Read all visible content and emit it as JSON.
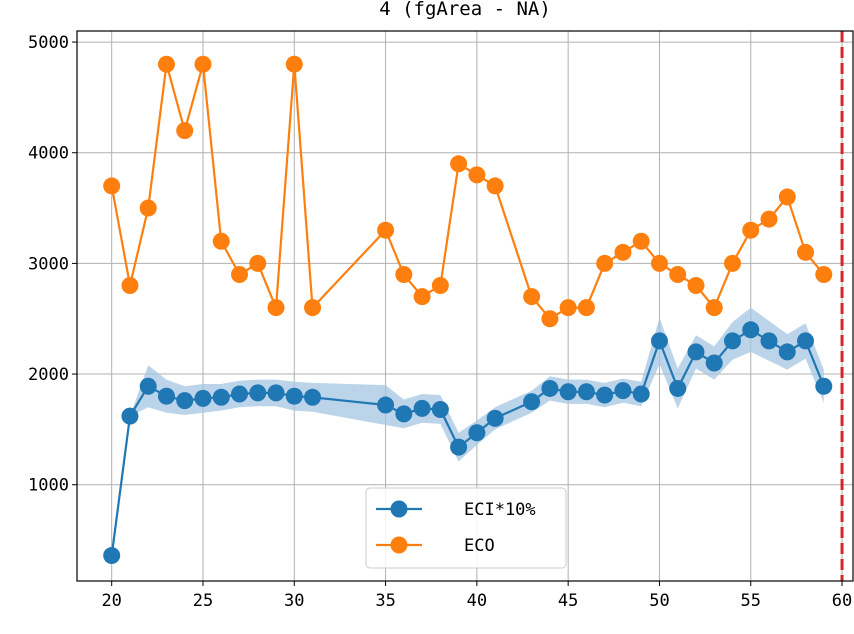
{
  "chart_data": {
    "type": "line",
    "title": "4 (fgArea - NA)",
    "xlim": [
      18.1,
      60.6
    ],
    "ylim": [
      130,
      5100
    ],
    "xticks": [
      20,
      25,
      30,
      35,
      40,
      45,
      50,
      55,
      60
    ],
    "yticks": [
      1000,
      2000,
      3000,
      4000,
      5000
    ],
    "grid": true,
    "legend_position": "bottom-center",
    "vline": {
      "x": 60,
      "color": "#d62728",
      "style": "dashed"
    },
    "series": [
      {
        "name": "ECI*10%",
        "color": "#1f77b4",
        "band_color": "#a6c6e1",
        "x": [
          20,
          21,
          22,
          23,
          24,
          25,
          26,
          27,
          28,
          29,
          30,
          31,
          35,
          36,
          37,
          38,
          39,
          40,
          41,
          43,
          44,
          45,
          46,
          47,
          48,
          49,
          50,
          51,
          52,
          53,
          54,
          55,
          56,
          57,
          58,
          59
        ],
        "y": [
          360,
          1620,
          1890,
          1800,
          1760,
          1780,
          1790,
          1820,
          1830,
          1830,
          1800,
          1790,
          1720,
          1640,
          1690,
          1680,
          1340,
          1470,
          1600,
          1750,
          1870,
          1840,
          1840,
          1810,
          1850,
          1820,
          2300,
          1870,
          2200,
          2100,
          2300,
          2400,
          2300,
          2200,
          2300,
          1890
        ],
        "band": [
          0,
          0,
          190,
          150,
          130,
          130,
          120,
          120,
          120,
          120,
          130,
          130,
          180,
          130,
          130,
          130,
          130,
          110,
          100,
          100,
          110,
          110,
          110,
          110,
          110,
          110,
          210,
          180,
          150,
          150,
          170,
          200,
          180,
          160,
          160,
          150
        ]
      },
      {
        "name": "ECO",
        "color": "#ff7f0e",
        "x": [
          20,
          21,
          22,
          23,
          24,
          25,
          26,
          27,
          28,
          29,
          30,
          31,
          35,
          36,
          37,
          38,
          39,
          40,
          41,
          43,
          44,
          45,
          46,
          47,
          48,
          49,
          50,
          51,
          52,
          53,
          54,
          55,
          56,
          57,
          58,
          59
        ],
        "y": [
          3700,
          2800,
          3500,
          4800,
          4200,
          4800,
          3200,
          2900,
          3000,
          2600,
          4800,
          2600,
          3300,
          2900,
          2700,
          2800,
          3900,
          3800,
          3700,
          2700,
          2500,
          2600,
          2600,
          3000,
          3100,
          3200,
          3000,
          2900,
          2800,
          2600,
          3000,
          3300,
          3400,
          3600,
          3100,
          2900
        ]
      }
    ]
  }
}
